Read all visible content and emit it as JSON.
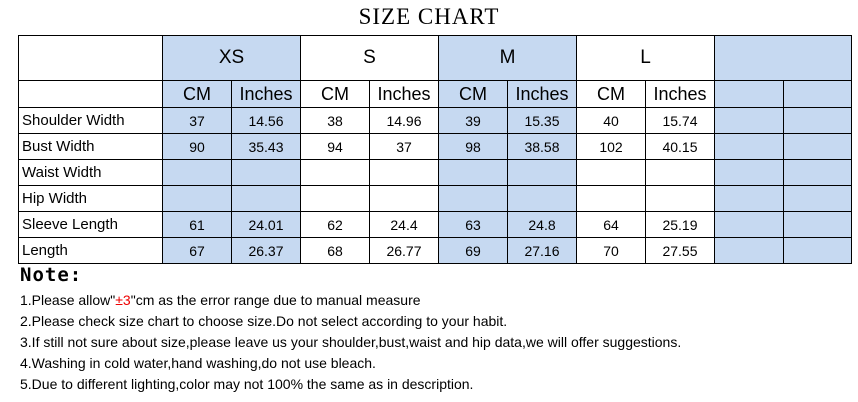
{
  "title": "SIZE CHART",
  "table": {
    "sizes": [
      "XS",
      "S",
      "M",
      "L"
    ],
    "units": [
      "CM",
      "Inches",
      "CM",
      "Inches",
      "CM",
      "Inches",
      "CM",
      "Inches"
    ],
    "rows": [
      {
        "label": "Shoulder Width",
        "values": [
          37,
          14.56,
          38,
          14.96,
          39,
          15.35,
          40,
          15.74
        ]
      },
      {
        "label": "Bust Width",
        "values": [
          90,
          35.43,
          94,
          37,
          98,
          38.58,
          102,
          40.15
        ]
      },
      {
        "label": "Waist Width"
      },
      {
        "label": "Hip Width"
      },
      {
        "label": "Sleeve Length",
        "values": [
          61,
          24.01,
          62,
          24.4,
          63,
          24.8,
          64,
          25.19
        ]
      },
      {
        "label": "Length",
        "values": [
          67,
          26.37,
          68,
          26.77,
          69,
          27.16,
          70,
          27.55
        ]
      }
    ]
  },
  "notes": {
    "heading": "Note:",
    "items": [
      [
        "1.Please allow\"",
        "±3",
        "\"cm as the error range due to manual measure"
      ],
      [
        "2.Please check size chart to choose size.Do not select according to your habit."
      ],
      [
        "3.If still not sure about size,please leave us your shoulder,bust,waist and hip data,we will offer suggestions."
      ],
      [
        "4.Washing in cold water,hand washing,do not use bleach."
      ],
      [
        "5.Due to different lighting,color may not 100% the same as in description."
      ]
    ]
  }
}
